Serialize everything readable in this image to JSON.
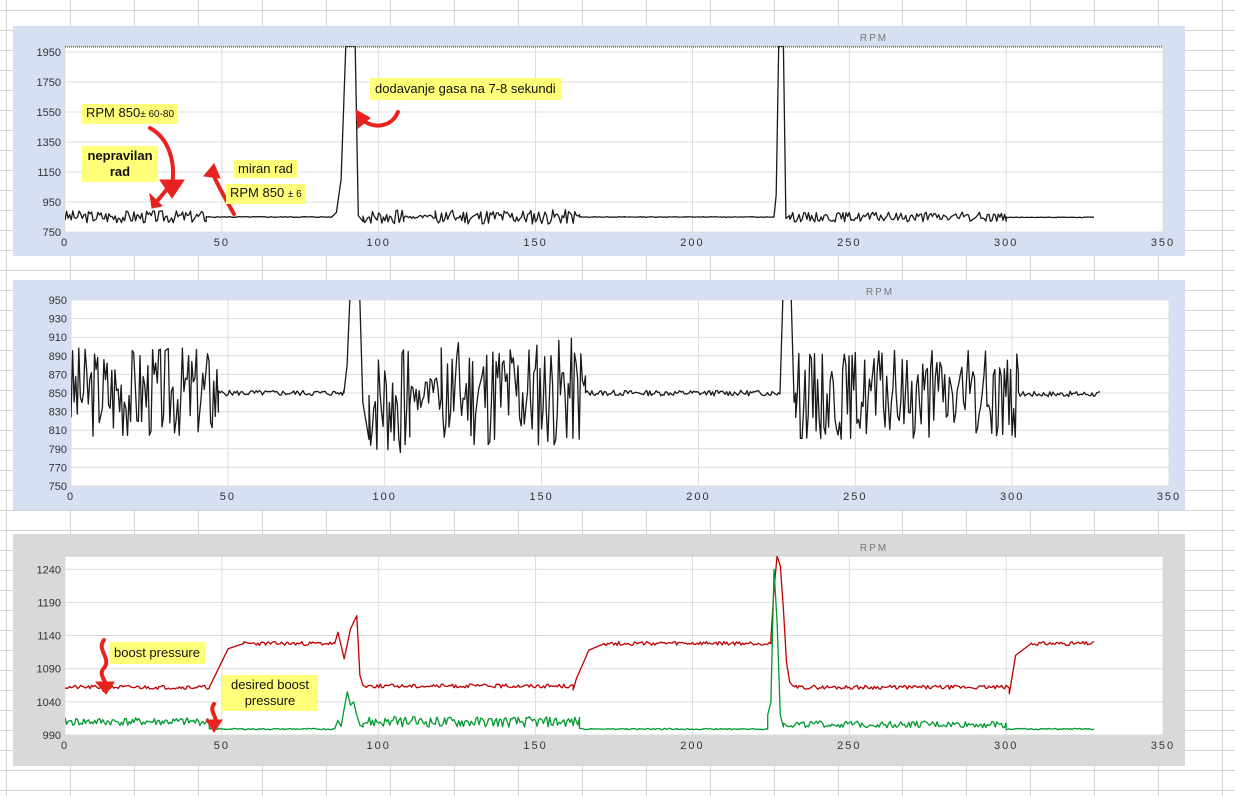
{
  "charts": [
    {
      "id": "chart1",
      "type": "line",
      "title": "RPM",
      "panel_bg": "#d6e0f2",
      "line_color": "#1a1a1a",
      "xlim": [
        0,
        350
      ],
      "ylim": [
        750,
        1990
      ],
      "x_ticks": [
        "0",
        "50",
        "100",
        "150",
        "200",
        "250",
        "300",
        "350"
      ],
      "y_ticks": [
        "1950",
        "1750",
        "1550",
        "1350",
        "1150",
        "950",
        "750"
      ],
      "grid": true,
      "series": [
        {
          "color": "#1a1a1a",
          "segments": [
            {
              "x0": 0,
              "x1": 45,
              "base": 852,
              "amp": 42,
              "seed": 3
            },
            {
              "x0": 45,
              "x1": 85,
              "base": 850,
              "amp": 3,
              "seed": 5
            },
            {
              "peak": [
                85,
                86.5,
                88,
                89.5,
                92.5,
                93.5,
                95
              ],
              "peak_y": [
                850,
                880,
                1100,
                1990,
                1990,
                860,
                820
              ]
            },
            {
              "x0": 95,
              "x1": 108,
              "base": 850,
              "amp": 48,
              "seed": 7
            },
            {
              "x0": 108,
              "x1": 118,
              "base": 850,
              "amp": 14,
              "seed": 9
            },
            {
              "x0": 118,
              "x1": 164,
              "base": 850,
              "amp": 50,
              "seed": 11
            },
            {
              "x0": 164,
              "x1": 226,
              "base": 850,
              "amp": 2,
              "seed": 13
            },
            {
              "peak": [
                226,
                226.7,
                227.5,
                229,
                229.8,
                231
              ],
              "peak_y": [
                850,
                1000,
                1990,
                1990,
                840,
                860
              ]
            },
            {
              "x0": 231,
              "x1": 300,
              "base": 850,
              "amp": 32,
              "seed": 15
            },
            {
              "x0": 300,
              "x1": 328,
              "base": 848,
              "amp": 2,
              "seed": 17
            }
          ]
        }
      ]
    },
    {
      "id": "chart2",
      "type": "line",
      "title": "RPM",
      "panel_bg": "#d6e0f2",
      "line_color": "#1a1a1a",
      "xlim": [
        0,
        350
      ],
      "ylim": [
        750,
        950
      ],
      "x_ticks": [
        "0",
        "50",
        "100",
        "150",
        "200",
        "250",
        "300",
        "350"
      ],
      "y_ticks": [
        "950",
        "930",
        "910",
        "890",
        "870",
        "850",
        "830",
        "810",
        "790",
        "770",
        "750"
      ],
      "grid": true,
      "series": [
        {
          "color": "#1a1a1a",
          "segments": [
            {
              "x0": 0,
              "x1": 47,
              "base": 852,
              "amp": 50,
              "seed": 3
            },
            {
              "x0": 47,
              "x1": 87,
              "base": 850,
              "amp": 3,
              "seed": 5
            },
            {
              "peak": [
                87,
                88,
                89,
                92,
                93,
                95
              ],
              "peak_y": [
                850,
                880,
                960,
                960,
                840,
                800
              ]
            },
            {
              "x0": 95,
              "x1": 108,
              "base": 840,
              "amp": 60,
              "seed": 7
            },
            {
              "x0": 108,
              "x1": 118,
              "base": 848,
              "amp": 22,
              "seed": 9
            },
            {
              "x0": 118,
              "x1": 164,
              "base": 850,
              "amp": 60,
              "seed": 11
            },
            {
              "x0": 164,
              "x1": 226,
              "base": 850,
              "amp": 3,
              "seed": 13
            },
            {
              "peak": [
                226,
                227,
                228,
                229.5,
                230.5,
                231
              ],
              "peak_y": [
                850,
                960,
                960,
                960,
                840,
                850
              ]
            },
            {
              "x0": 231,
              "x1": 302,
              "base": 848,
              "amp": 48,
              "seed": 15
            },
            {
              "x0": 302,
              "x1": 328,
              "base": 849,
              "amp": 3,
              "seed": 17
            }
          ]
        }
      ]
    },
    {
      "id": "chart3",
      "type": "line",
      "title": "RPM",
      "panel_bg": "#d9d9d9",
      "line_color": "#c00000",
      "xlim": [
        0,
        350
      ],
      "ylim": [
        990,
        1260
      ],
      "x_ticks": [
        "0",
        "50",
        "100",
        "150",
        "200",
        "250",
        "300",
        "350"
      ],
      "y_ticks": [
        "1240",
        "1190",
        "1140",
        "1090",
        "1040",
        "990"
      ],
      "grid": true,
      "series": [
        {
          "color": "#c00000",
          "segments": [
            {
              "x0": 0,
              "x1": 46,
              "base": 1062,
              "amp": 3,
              "seed": 21
            },
            {
              "ramp": [
                46,
                52,
                57
              ],
              "ramp_y": [
                1062,
                1120,
                1128
              ]
            },
            {
              "x0": 57,
              "x1": 86,
              "base": 1128,
              "amp": 3,
              "seed": 23
            },
            {
              "peak": [
                86,
                87,
                88,
                89,
                91,
                92,
                93,
                94,
                95
              ],
              "peak_y": [
                1128,
                1145,
                1125,
                1105,
                1150,
                1160,
                1170,
                1080,
                1065
              ]
            },
            {
              "x0": 95,
              "x1": 162,
              "base": 1064,
              "amp": 3,
              "seed": 25
            },
            {
              "ramp": [
                162,
                163,
                167,
                172
              ],
              "ramp_y": [
                1058,
                1075,
                1118,
                1128
              ]
            },
            {
              "x0": 172,
              "x1": 225,
              "base": 1128,
              "amp": 3,
              "seed": 27
            },
            {
              "peak": [
                225,
                226,
                227,
                228,
                229,
                230,
                231,
                232
              ],
              "peak_y": [
                1135,
                1210,
                1260,
                1245,
                1180,
                1100,
                1070,
                1064
              ]
            },
            {
              "x0": 232,
              "x1": 301,
              "base": 1062,
              "amp": 3,
              "seed": 29
            },
            {
              "ramp": [
                301,
                303,
                308
              ],
              "ramp_y": [
                1052,
                1110,
                1128
              ]
            },
            {
              "x0": 308,
              "x1": 328,
              "base": 1128,
              "amp": 3,
              "seed": 31
            }
          ]
        },
        {
          "color": "#009a2e",
          "segments": [
            {
              "x0": 0,
              "x1": 46,
              "base": 1010,
              "amp": 6,
              "seed": 41
            },
            {
              "x0": 46,
              "x1": 86,
              "base": 999,
              "amp": 1,
              "seed": 43
            },
            {
              "peak": [
                86,
                87,
                88,
                89,
                90,
                91,
                92,
                93,
                94,
                95
              ],
              "peak_y": [
                1000,
                1012,
                1003,
                1030,
                1055,
                1035,
                1040,
                1020,
                1005,
                1002
              ]
            },
            {
              "x0": 95,
              "x1": 164,
              "base": 1010,
              "amp": 8,
              "seed": 45
            },
            {
              "x0": 164,
              "x1": 224,
              "base": 999,
              "amp": 1,
              "seed": 47
            },
            {
              "peak": [
                224,
                225,
                226,
                227,
                228,
                229
              ],
              "peak_y": [
                1020,
                1040,
                1240,
                1160,
                1020,
                1002
              ]
            },
            {
              "x0": 229,
              "x1": 300,
              "base": 1006,
              "amp": 5,
              "seed": 49
            },
            {
              "x0": 300,
              "x1": 328,
              "base": 999,
              "amp": 1,
              "seed": 51
            }
          ]
        }
      ]
    }
  ],
  "annotations": {
    "rpm_850": "RPM 850",
    "rpm_850_range": "± 60-80",
    "nepravilan": "nepravilan rad",
    "miran_rad": "miran rad",
    "rpm_850_6": "RPM 850",
    "rpm_850_6_range": "± 6",
    "dodavanje": "dodavanje gasa na 7-8 sekundi",
    "boost_pressure": "boost pressure",
    "desired_boost": "desired boost pressure"
  },
  "arrow_color": "#e8231f"
}
